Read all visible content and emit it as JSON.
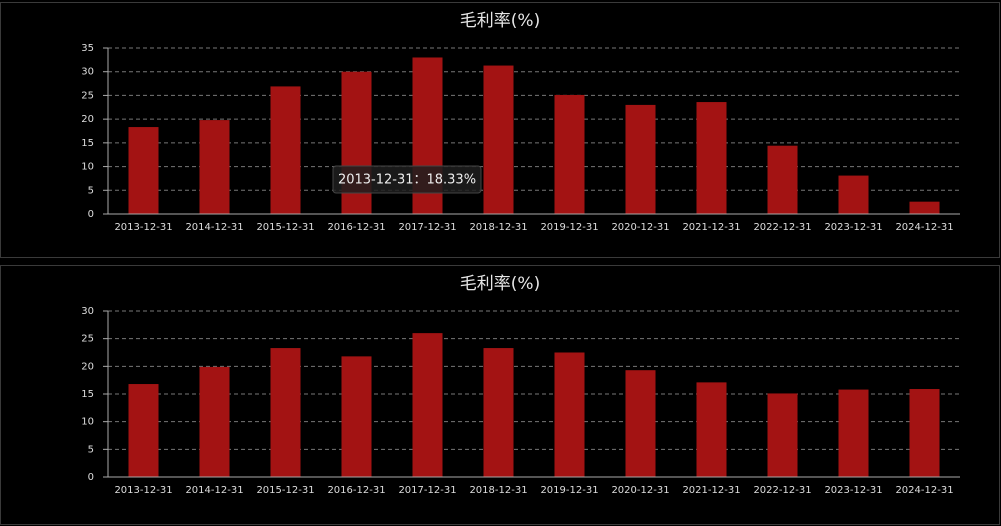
{
  "chart_data": [
    {
      "type": "bar",
      "title": "毛利率(%)",
      "color": "#a31313",
      "grid": true,
      "categories": [
        "2013-12-31",
        "2014-12-31",
        "2015-12-31",
        "2016-12-31",
        "2017-12-31",
        "2018-12-31",
        "2019-12-31",
        "2020-12-31",
        "2021-12-31",
        "2022-12-31",
        "2023-12-31",
        "2024-12-31"
      ],
      "values": [
        18.33,
        19.8,
        26.9,
        30,
        33,
        31.3,
        25.1,
        23,
        23.6,
        14.4,
        8.1,
        2.6
      ],
      "ylim": [
        0,
        35
      ],
      "yticks": [
        0,
        5,
        10,
        15,
        20,
        25,
        30,
        35
      ],
      "tooltip": "2013-12-31：18.33%"
    },
    {
      "type": "bar",
      "title": "毛利率(%)",
      "color": "#a31313",
      "grid": true,
      "categories": [
        "2013-12-31",
        "2014-12-31",
        "2015-12-31",
        "2016-12-31",
        "2017-12-31",
        "2018-12-31",
        "2019-12-31",
        "2020-12-31",
        "2021-12-31",
        "2022-12-31",
        "2023-12-31",
        "2024-12-31"
      ],
      "values": [
        16.8,
        19.9,
        23.3,
        21.8,
        26,
        23.3,
        22.5,
        19.3,
        17.1,
        15.1,
        15.8,
        15.9
      ],
      "ylim": [
        0,
        30
      ],
      "yticks": [
        0,
        5,
        10,
        15,
        20,
        25,
        30
      ]
    }
  ]
}
